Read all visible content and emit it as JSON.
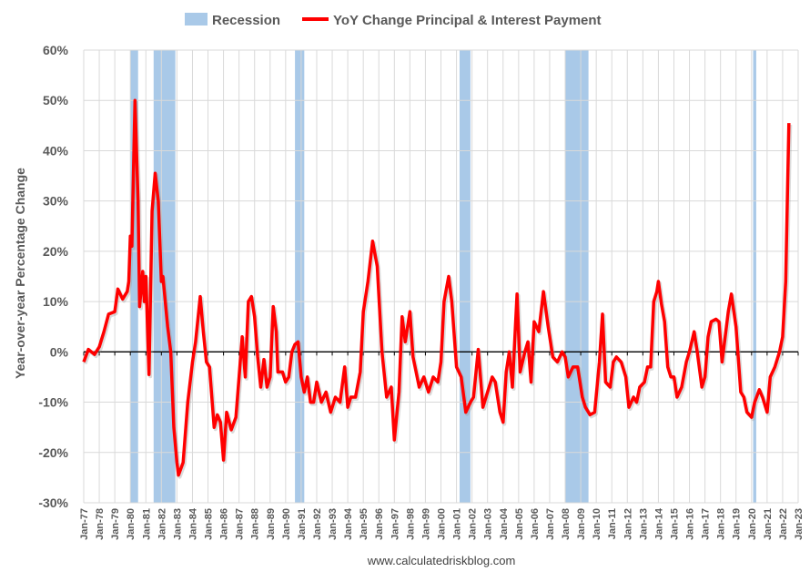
{
  "chart_data": {
    "type": "line",
    "title": "",
    "legend": {
      "placement": "top-center",
      "entries": [
        {
          "name": "Recession",
          "color": "#a9c9e8",
          "kind": "band"
        },
        {
          "name": "YoY Change Principal & Interest Payment",
          "color": "#ff0000",
          "kind": "line"
        }
      ]
    },
    "xlabel": "",
    "ylabel": "Year-over-year Percentage Change",
    "xlim": [
      1977,
      2023
    ],
    "ylim": [
      -30,
      60
    ],
    "yticks": [
      -30,
      -20,
      -10,
      0,
      10,
      20,
      30,
      40,
      50,
      60
    ],
    "ytick_labels": [
      "-30%",
      "-20%",
      "-10%",
      "0%",
      "10%",
      "20%",
      "30%",
      "40%",
      "50%",
      "60%"
    ],
    "xtick_labels": [
      "Jan-77",
      "Jan-78",
      "Jan-79",
      "Jan-80",
      "Jan-81",
      "Jan-82",
      "Jan-83",
      "Jan-84",
      "Jan-85",
      "Jan-86",
      "Jan-87",
      "Jan-88",
      "Jan-89",
      "Jan-90",
      "Jan-91",
      "Jan-92",
      "Jan-93",
      "Jan-94",
      "Jan-95",
      "Jan-96",
      "Jan-97",
      "Jan-98",
      "Jan-99",
      "Jan-00",
      "Jan-01",
      "Jan-02",
      "Jan-03",
      "Jan-04",
      "Jan-05",
      "Jan-06",
      "Jan-07",
      "Jan-08",
      "Jan-09",
      "Jan-10",
      "Jan-11",
      "Jan-12",
      "Jan-13",
      "Jan-14",
      "Jan-15",
      "Jan-16",
      "Jan-17",
      "Jan-18",
      "Jan-19",
      "Jan-20",
      "Jan-21",
      "Jan-22",
      "Jan-23"
    ],
    "grid": true,
    "recessions": [
      [
        1980.0,
        1980.5
      ],
      [
        1981.5,
        1982.9
      ],
      [
        1990.6,
        1991.2
      ],
      [
        2001.2,
        2001.9
      ],
      [
        2008.0,
        2009.5
      ],
      [
        2020.1,
        2020.3
      ]
    ],
    "series": [
      {
        "name": "YoY Change Principal & Interest Payment",
        "color": "#ff0000",
        "x": [
          1977.0,
          1977.3,
          1977.7,
          1978.0,
          1978.3,
          1978.6,
          1979.0,
          1979.2,
          1979.5,
          1979.8,
          1979.9,
          1980.0,
          1980.1,
          1980.3,
          1980.5,
          1980.6,
          1980.8,
          1980.9,
          1981.0,
          1981.2,
          1981.4,
          1981.6,
          1981.8,
          1982.0,
          1982.1,
          1982.4,
          1982.6,
          1982.8,
          1983.0,
          1983.1,
          1983.4,
          1983.7,
          1984.0,
          1984.2,
          1984.5,
          1984.7,
          1984.9,
          1985.1,
          1985.4,
          1985.6,
          1985.8,
          1986.0,
          1986.2,
          1986.5,
          1986.8,
          1987.0,
          1987.2,
          1987.4,
          1987.6,
          1987.8,
          1988.0,
          1988.2,
          1988.4,
          1988.6,
          1988.8,
          1989.0,
          1989.2,
          1989.4,
          1989.5,
          1989.8,
          1990.0,
          1990.2,
          1990.4,
          1990.6,
          1990.8,
          1991.0,
          1991.2,
          1991.4,
          1991.6,
          1991.8,
          1992.0,
          1992.3,
          1992.6,
          1992.9,
          1993.2,
          1993.5,
          1993.8,
          1994.0,
          1994.2,
          1994.5,
          1994.8,
          1995.0,
          1995.3,
          1995.6,
          1995.9,
          1996.2,
          1996.5,
          1996.8,
          1997.0,
          1997.3,
          1997.5,
          1997.7,
          1998.0,
          1998.2,
          1998.4,
          1998.6,
          1998.9,
          1999.2,
          1999.5,
          1999.8,
          2000.0,
          2000.2,
          2000.5,
          2000.7,
          2001.0,
          2001.3,
          2001.6,
          2001.9,
          2002.1,
          2002.4,
          2002.7,
          2003.0,
          2003.3,
          2003.5,
          2003.8,
          2004.0,
          2004.2,
          2004.4,
          2004.6,
          2004.9,
          2005.1,
          2005.4,
          2005.6,
          2005.8,
          2006.0,
          2006.3,
          2006.6,
          2006.9,
          2007.2,
          2007.5,
          2007.8,
          2008.0,
          2008.2,
          2008.5,
          2008.8,
          2009.1,
          2009.3,
          2009.6,
          2009.9,
          2010.2,
          2010.4,
          2010.6,
          2010.9,
          2011.1,
          2011.3,
          2011.6,
          2011.9,
          2012.1,
          2012.4,
          2012.6,
          2012.8,
          2013.1,
          2013.3,
          2013.5,
          2013.7,
          2013.9,
          2014.0,
          2014.2,
          2014.4,
          2014.6,
          2014.8,
          2015.0,
          2015.2,
          2015.5,
          2015.8,
          2016.0,
          2016.3,
          2016.5,
          2016.8,
          2017.0,
          2017.2,
          2017.4,
          2017.7,
          2017.9,
          2018.1,
          2018.3,
          2018.5,
          2018.7,
          2019.0,
          2019.3,
          2019.5,
          2019.7,
          2020.0,
          2020.2,
          2020.5,
          2020.7,
          2021.0,
          2021.2,
          2021.5,
          2021.8,
          2022.0,
          2022.2,
          2022.4
        ],
        "values": [
          -2,
          0.5,
          -0.5,
          1,
          4,
          7.5,
          8,
          12.5,
          10.5,
          12,
          14,
          23,
          21,
          50,
          30,
          9,
          16,
          10,
          15,
          -4.5,
          28,
          35.5,
          30,
          14,
          15,
          5,
          0,
          -15,
          -22,
          -24.5,
          -22,
          -10,
          -2,
          2,
          11,
          4,
          -2,
          -3,
          -15,
          -12.5,
          -14,
          -21.5,
          -12,
          -15.5,
          -13,
          -5,
          3,
          -5,
          10,
          11,
          7,
          -1,
          -7,
          -1.5,
          -7,
          -5,
          9,
          4,
          -4,
          -4,
          -6,
          -5,
          0,
          1.5,
          2,
          -5,
          -8,
          -5,
          -10,
          -10,
          -6,
          -10,
          -8,
          -12,
          -9,
          -10,
          -3,
          -11,
          -9,
          -9,
          -4,
          8,
          14,
          22,
          17,
          0,
          -9,
          -7,
          -17.5,
          -8,
          7,
          2,
          8,
          -1,
          -4,
          -7,
          -5,
          -8,
          -5,
          -6,
          -2,
          10,
          15,
          10,
          -3,
          -5,
          -12,
          -10,
          -9,
          0.5,
          -11,
          -8,
          -5,
          -6,
          -12,
          -14,
          -4,
          0,
          -7,
          11.5,
          -4,
          0,
          2,
          -6,
          6,
          4,
          12,
          5,
          -1,
          -2,
          0,
          -1,
          -5,
          -3,
          -3,
          -9,
          -11,
          -12.5,
          -12,
          -2,
          7.5,
          -6,
          -7,
          -2,
          -1,
          -2,
          -5,
          -11,
          -9,
          -10,
          -7,
          -6,
          -3,
          -3,
          10,
          12,
          14,
          9.5,
          6,
          -3,
          -5,
          -5,
          -9,
          -7,
          -2,
          0,
          4,
          0,
          -7,
          -5,
          3,
          6,
          6.5,
          6,
          -2,
          3,
          8,
          11.5,
          5,
          -8,
          -9,
          -12,
          -13,
          -10,
          -7.5,
          -9,
          -12,
          -5,
          -3,
          0,
          3,
          14,
          45.5
        ]
      }
    ]
  },
  "footer": {
    "source": "www.calculatedriskblog.com"
  }
}
